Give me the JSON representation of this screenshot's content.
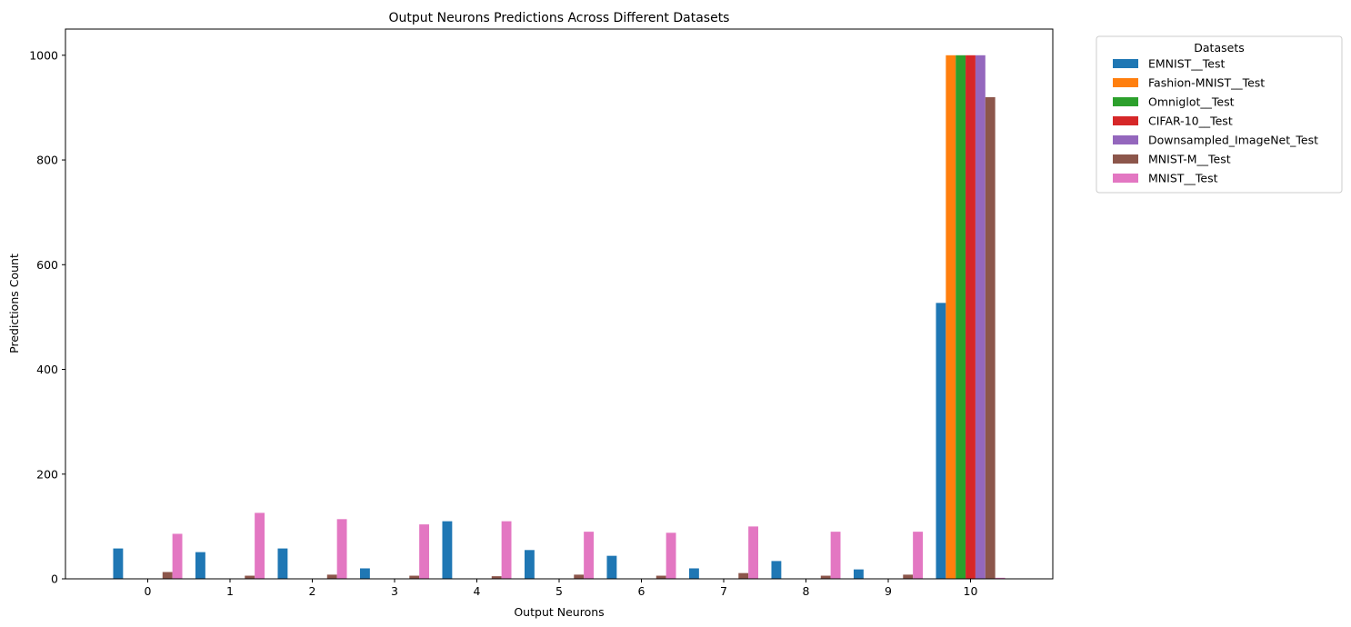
{
  "chart_data": {
    "type": "bar",
    "title": "Output Neurons Predictions Across Different Datasets",
    "xlabel": "Output Neurons",
    "ylabel": "Predictions Count",
    "categories": [
      "0",
      "1",
      "2",
      "3",
      "4",
      "5",
      "6",
      "7",
      "8",
      "9",
      "10"
    ],
    "ylim": [
      0,
      1050
    ],
    "yticks": [
      0,
      200,
      400,
      600,
      800,
      1000
    ],
    "grid": false,
    "legend": {
      "title": "Datasets",
      "placement": "outside top-right"
    },
    "series": [
      {
        "name": "EMNIST__Test",
        "color": "#1f77b4",
        "values": [
          58,
          51,
          58,
          20,
          110,
          55,
          44,
          20,
          34,
          18,
          527
        ]
      },
      {
        "name": "Fashion-MNIST__Test",
        "color": "#ff7f0e",
        "values": [
          0,
          0,
          0,
          0,
          0,
          0,
          0,
          0,
          0,
          0,
          1000
        ]
      },
      {
        "name": "Omniglot__Test",
        "color": "#2ca02c",
        "values": [
          0,
          0,
          0,
          0,
          0,
          0,
          0,
          0,
          0,
          0,
          1000
        ]
      },
      {
        "name": "CIFAR-10__Test",
        "color": "#d62728",
        "values": [
          0,
          0,
          0,
          0,
          0,
          0,
          0,
          0,
          0,
          0,
          1000
        ]
      },
      {
        "name": "Downsampled_ImageNet_Test",
        "color": "#9467bd",
        "values": [
          0,
          0,
          0,
          0,
          0,
          0,
          0,
          0,
          0,
          0,
          1000
        ]
      },
      {
        "name": "MNIST-M__Test",
        "color": "#8c564b",
        "values": [
          13,
          6,
          8,
          6,
          5,
          8,
          6,
          11,
          6,
          8,
          920
        ]
      },
      {
        "name": "MNIST__Test",
        "color": "#e377c2",
        "values": [
          86,
          126,
          114,
          104,
          110,
          90,
          88,
          100,
          90,
          90,
          2
        ]
      }
    ]
  }
}
